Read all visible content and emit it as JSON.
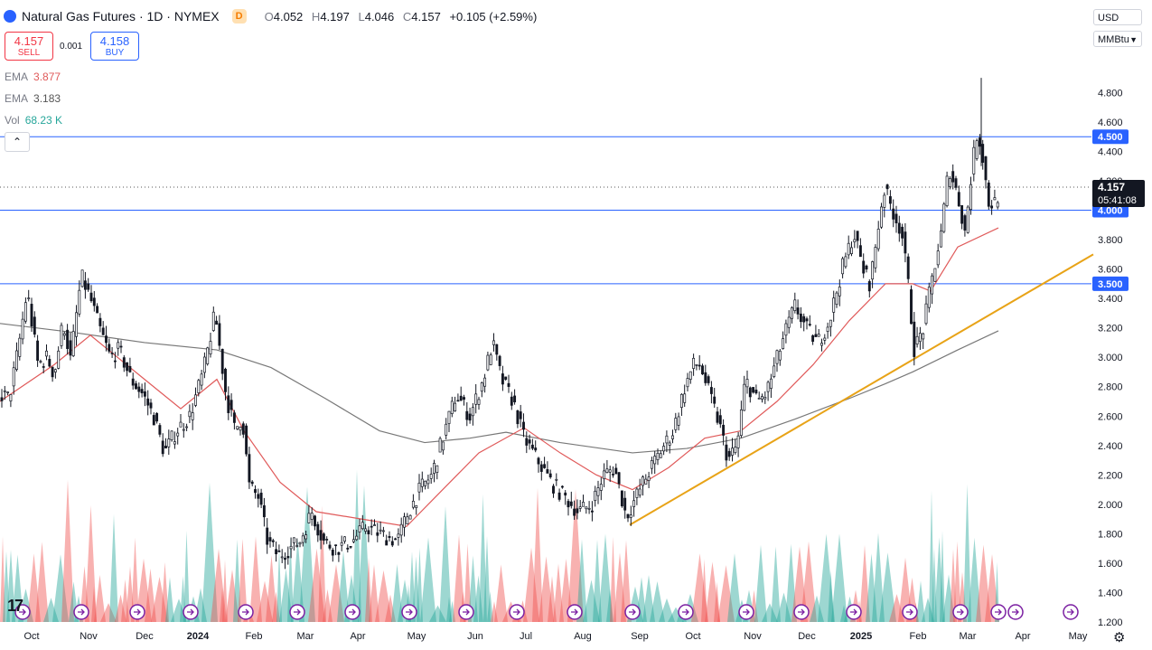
{
  "header": {
    "title": "Natural Gas Futures · 1D · NYMEX",
    "badge": "D",
    "o_label": "O",
    "o_value": "4.052",
    "h_label": "H",
    "h_value": "4.197",
    "l_label": "L",
    "l_value": "4.046",
    "c_label": "C",
    "c_value": "4.157",
    "change": "+0.105 (+2.59%)"
  },
  "trade": {
    "sell_price": "4.157",
    "sell_label": "SELL",
    "spread": "0.001",
    "buy_price": "4.158",
    "buy_label": "BUY"
  },
  "indicators": {
    "ema1_label": "EMA",
    "ema1_value": "3.877",
    "ema2_label": "EMA",
    "ema2_value": "3.183",
    "vol_label": "Vol",
    "vol_value": "68.23 K",
    "collapse_icon": "chevron-up-icon"
  },
  "axis_controls": {
    "currency": "USD",
    "unit": "MMBtu"
  },
  "colors": {
    "up": "#131722",
    "down": "#131722",
    "ema_fast": "#e05a5a",
    "ema_slow": "#787878",
    "trend": "#e8a317",
    "hline": "#2962ff",
    "vol_up": "#26a69a",
    "vol_down": "#ef5350"
  },
  "chart_data": {
    "type": "candlestick",
    "ylim": [
      1.2,
      4.95
    ],
    "y_ticks": [
      "4.800",
      "4.600",
      "4.400",
      "4.200",
      "4.000",
      "3.800",
      "3.600",
      "3.400",
      "3.200",
      "3.000",
      "2.800",
      "2.600",
      "2.400",
      "2.200",
      "2.000",
      "1.800",
      "1.600",
      "1.400",
      "1.200"
    ],
    "x_labels": [
      "Oct",
      "Nov",
      "Dec",
      "2024",
      "Feb",
      "Mar",
      "Apr",
      "May",
      "Jun",
      "Jul",
      "Aug",
      "Sep",
      "Oct",
      "Nov",
      "Dec",
      "2025",
      "Feb",
      "Mar",
      "Apr",
      "May"
    ],
    "last_price": "4.157",
    "countdown": "05:41:08",
    "horizontal_levels": [
      {
        "value": 4.5,
        "label": "4.500"
      },
      {
        "value": 4.0,
        "label": "4.000"
      },
      {
        "value": 3.5,
        "label": "3.500"
      }
    ],
    "anchors": [
      [
        0,
        2.75
      ],
      [
        10,
        2.72
      ],
      [
        20,
        3.05
      ],
      [
        30,
        3.45
      ],
      [
        42,
        2.95
      ],
      [
        52,
        3.0
      ],
      [
        60,
        2.88
      ],
      [
        70,
        3.25
      ],
      [
        78,
        2.98
      ],
      [
        90,
        3.55
      ],
      [
        100,
        3.4
      ],
      [
        110,
        3.2
      ],
      [
        122,
        3.0
      ],
      [
        132,
        3.05
      ],
      [
        145,
        2.85
      ],
      [
        158,
        2.75
      ],
      [
        170,
        2.6
      ],
      [
        182,
        2.35
      ],
      [
        195,
        2.5
      ],
      [
        210,
        2.6
      ],
      [
        225,
        2.9
      ],
      [
        238,
        3.3
      ],
      [
        250,
        2.75
      ],
      [
        260,
        2.5
      ],
      [
        268,
        2.6
      ],
      [
        276,
        2.12
      ],
      [
        286,
        2.05
      ],
      [
        296,
        1.75
      ],
      [
        308,
        1.65
      ],
      [
        320,
        1.7
      ],
      [
        332,
        1.75
      ],
      [
        345,
        1.95
      ],
      [
        358,
        1.75
      ],
      [
        372,
        1.7
      ],
      [
        390,
        1.75
      ],
      [
        405,
        1.85
      ],
      [
        420,
        1.8
      ],
      [
        440,
        1.75
      ],
      [
        452,
        1.95
      ],
      [
        465,
        2.1
      ],
      [
        478,
        2.2
      ],
      [
        490,
        2.45
      ],
      [
        505,
        2.75
      ],
      [
        520,
        2.6
      ],
      [
        535,
        2.85
      ],
      [
        545,
        3.1
      ],
      [
        555,
        2.85
      ],
      [
        568,
        2.7
      ],
      [
        580,
        2.45
      ],
      [
        595,
        2.3
      ],
      [
        610,
        2.15
      ],
      [
        625,
        2.05
      ],
      [
        640,
        1.95
      ],
      [
        655,
        2.0
      ],
      [
        668,
        2.2
      ],
      [
        680,
        2.25
      ],
      [
        693,
        1.92
      ],
      [
        700,
        2.0
      ],
      [
        712,
        2.15
      ],
      [
        730,
        2.35
      ],
      [
        745,
        2.5
      ],
      [
        758,
        2.8
      ],
      [
        768,
        2.95
      ],
      [
        775,
        2.95
      ],
      [
        785,
        2.75
      ],
      [
        796,
        2.55
      ],
      [
        806,
        2.3
      ],
      [
        816,
        2.4
      ],
      [
        825,
        2.85
      ],
      [
        838,
        2.7
      ],
      [
        848,
        2.75
      ],
      [
        858,
        2.95
      ],
      [
        868,
        3.15
      ],
      [
        880,
        3.35
      ],
      [
        892,
        3.2
      ],
      [
        905,
        3.1
      ],
      [
        918,
        3.25
      ],
      [
        932,
        3.6
      ],
      [
        945,
        3.85
      ],
      [
        955,
        3.6
      ],
      [
        963,
        3.5
      ],
      [
        970,
        3.8
      ],
      [
        978,
        4.15
      ],
      [
        988,
        4.0
      ],
      [
        998,
        3.85
      ],
      [
        1005,
        3.5
      ],
      [
        1012,
        3.05
      ],
      [
        1022,
        3.2
      ],
      [
        1032,
        3.55
      ],
      [
        1042,
        3.85
      ],
      [
        1050,
        4.3
      ],
      [
        1060,
        4.1
      ],
      [
        1068,
        3.85
      ],
      [
        1076,
        4.3
      ],
      [
        1082,
        4.55
      ],
      [
        1088,
        4.35
      ],
      [
        1094,
        4.05
      ],
      [
        1102,
        4.05
      ],
      [
        1107,
        4.16
      ]
    ],
    "ema_fast_anchors": [
      [
        0,
        2.7
      ],
      [
        60,
        2.95
      ],
      [
        100,
        3.15
      ],
      [
        160,
        2.85
      ],
      [
        200,
        2.65
      ],
      [
        240,
        2.85
      ],
      [
        270,
        2.5
      ],
      [
        310,
        2.15
      ],
      [
        350,
        1.95
      ],
      [
        400,
        1.9
      ],
      [
        450,
        1.85
      ],
      [
        490,
        2.1
      ],
      [
        530,
        2.35
      ],
      [
        580,
        2.52
      ],
      [
        620,
        2.35
      ],
      [
        660,
        2.2
      ],
      [
        700,
        2.1
      ],
      [
        740,
        2.25
      ],
      [
        780,
        2.45
      ],
      [
        820,
        2.5
      ],
      [
        860,
        2.7
      ],
      [
        900,
        2.95
      ],
      [
        940,
        3.25
      ],
      [
        980,
        3.5
      ],
      [
        1010,
        3.5
      ],
      [
        1030,
        3.45
      ],
      [
        1060,
        3.75
      ],
      [
        1105,
        3.88
      ]
    ],
    "ema_slow_anchors": [
      [
        0,
        3.23
      ],
      [
        80,
        3.17
      ],
      [
        160,
        3.1
      ],
      [
        240,
        3.05
      ],
      [
        300,
        2.93
      ],
      [
        360,
        2.72
      ],
      [
        420,
        2.5
      ],
      [
        470,
        2.42
      ],
      [
        520,
        2.45
      ],
      [
        560,
        2.49
      ],
      [
        620,
        2.42
      ],
      [
        700,
        2.35
      ],
      [
        760,
        2.38
      ],
      [
        820,
        2.45
      ],
      [
        880,
        2.58
      ],
      [
        940,
        2.72
      ],
      [
        980,
        2.82
      ],
      [
        1010,
        2.9
      ],
      [
        1060,
        3.05
      ],
      [
        1105,
        3.18
      ]
    ],
    "trend_line": [
      [
        697,
        1.86
      ],
      [
        1210,
        3.7
      ]
    ],
    "events": [
      25,
      90,
      152,
      211,
      272,
      329,
      390,
      453,
      516,
      572,
      636,
      700,
      759,
      826,
      887,
      945,
      1007,
      1063,
      1105,
      1124,
      1185
    ],
    "volume_range": [
      1.3,
      2.25
    ]
  }
}
